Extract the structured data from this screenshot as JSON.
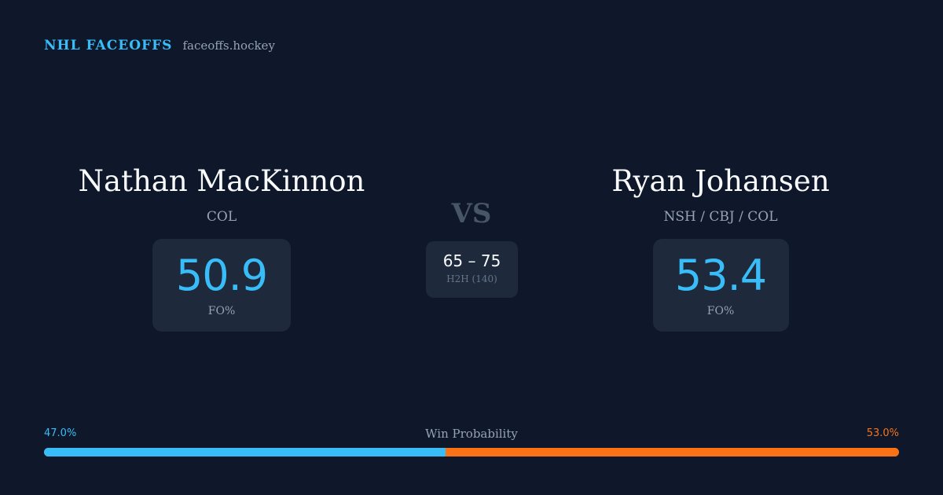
{
  "brand": {
    "name": "NHL FACEOFFS",
    "domain": "faceoffs.hockey"
  },
  "player_left": {
    "name": "Nathan MacKinnon",
    "team": "COL",
    "stat_value": "50.9",
    "stat_label": "FO%"
  },
  "player_right": {
    "name": "Ryan Johansen",
    "team": "NSH / CBJ / COL",
    "stat_value": "53.4",
    "stat_label": "FO%"
  },
  "versus": {
    "label": "VS",
    "h2h_score": "65 – 75",
    "h2h_label": "H2H (140)"
  },
  "win_probability": {
    "title": "Win Probability",
    "left_label": "47.0%",
    "right_label": "53.0%",
    "left_fraction": 0.47,
    "right_fraction": 0.53
  },
  "colors": {
    "background": "#0f172a",
    "card": "#1e293b",
    "accent_left": "#38bdf8",
    "accent_right": "#f97316",
    "muted_text": "#94a3b8"
  }
}
